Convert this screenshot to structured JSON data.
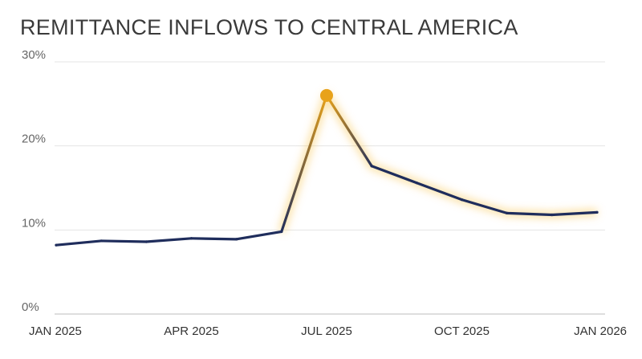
{
  "chart_data": {
    "type": "line",
    "title": "REMITTANCE INFLOWS TO CENTRAL AMERICA",
    "xlabel": "",
    "ylabel": "",
    "y_ticks": [
      "0%",
      "10%",
      "20%",
      "30%"
    ],
    "ylim": [
      0,
      30
    ],
    "x_ticks": [
      "JAN 2025",
      "APR 2025",
      "JUL 2025",
      "OCT 2025",
      "JAN 2026"
    ],
    "grid": true,
    "x": [
      "2025-01",
      "2025-02",
      "2025-03",
      "2025-04",
      "2025-05",
      "2025-06",
      "2025-07",
      "2025-08",
      "2025-09",
      "2025-10",
      "2025-11",
      "2025-12",
      "2026-01"
    ],
    "series": [
      {
        "values": [
          8.2,
          8.7,
          8.6,
          9.0,
          8.9,
          9.8,
          26.0,
          17.6,
          15.6,
          13.6,
          12.0,
          11.8,
          12.1
        ]
      }
    ],
    "highlight": {
      "x": "2025-07",
      "value": 26.0
    },
    "colors": {
      "line": "#1f2d5c",
      "highlight": "#e8a21a",
      "glow": "#f7c65a",
      "grid": "#e4e4e4"
    }
  }
}
